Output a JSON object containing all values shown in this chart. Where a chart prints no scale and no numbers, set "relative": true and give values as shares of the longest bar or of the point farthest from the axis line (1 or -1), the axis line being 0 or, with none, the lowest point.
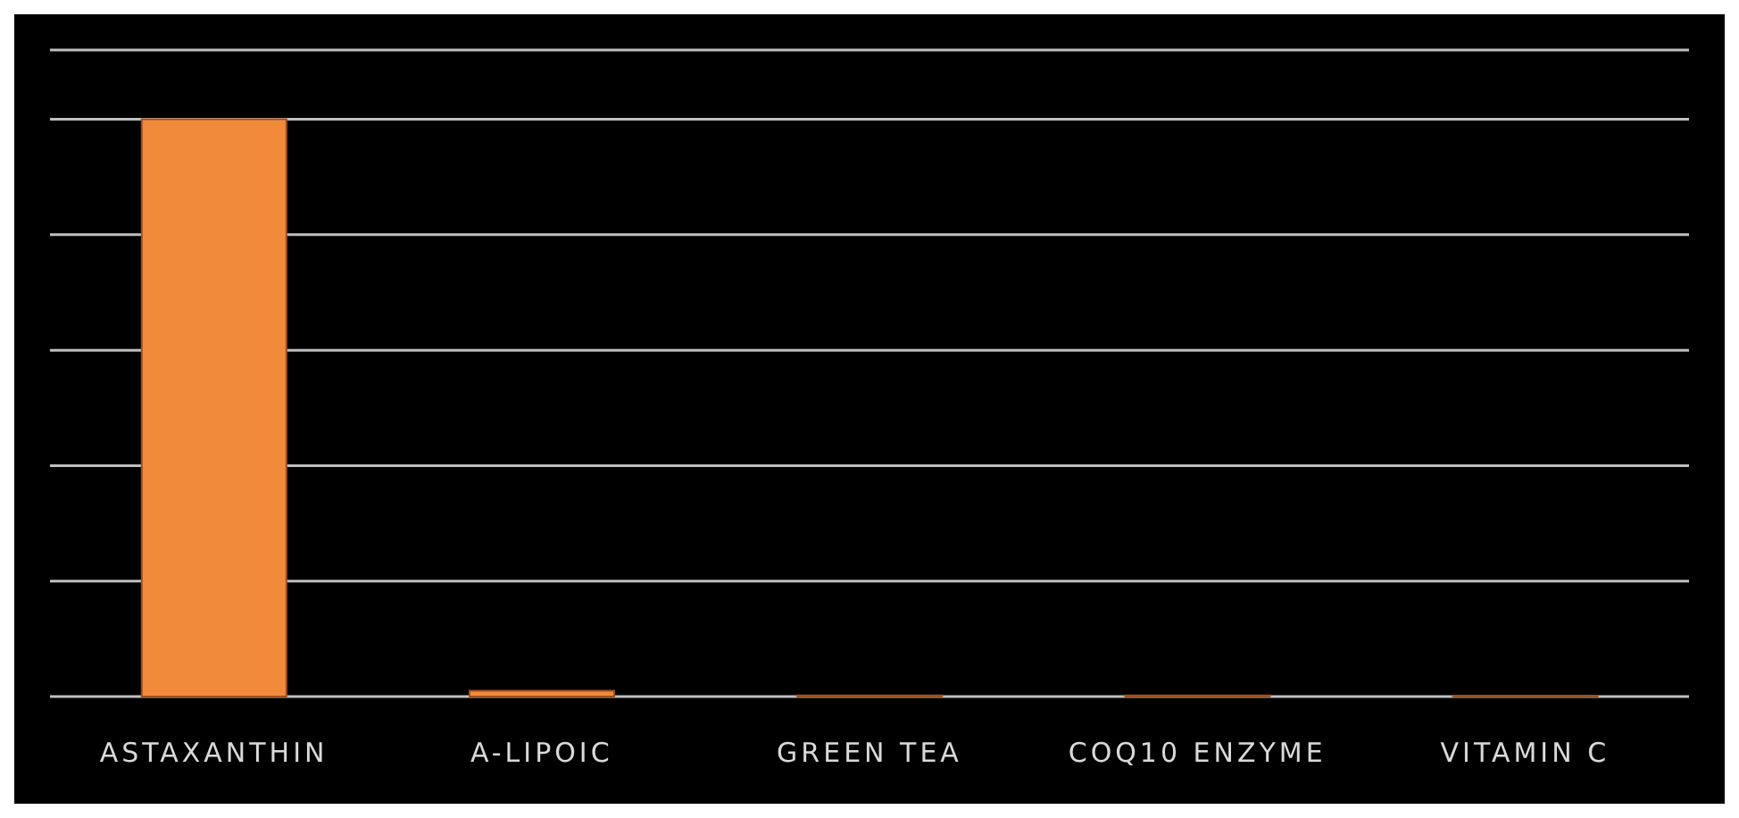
{
  "chart_data": {
    "type": "bar",
    "relative": true,
    "categories": [
      "ASTAXANTHIN",
      "A-LIPOIC",
      "GREEN TEA",
      "COQ10 ENZYME",
      "VITAMIN C"
    ],
    "values": [
      1,
      0.01,
      0.002,
      0.002,
      0.001
    ],
    "color": "#f28a3c",
    "grid": "y",
    "legend": false
  }
}
